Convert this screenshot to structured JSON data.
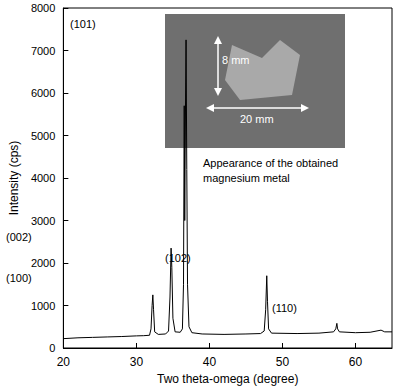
{
  "chart_data": {
    "type": "line",
    "x_label": "Two theta-omega (degree)",
    "y_label": "Intensity (cps)",
    "x": [
      20,
      22,
      24,
      26,
      28,
      30,
      31,
      31.8,
      32.0,
      32.15,
      32.25,
      32.35,
      32.5,
      33,
      34,
      34.4,
      34.6,
      34.75,
      34.85,
      35.0,
      35.3,
      36,
      36.3,
      36.45,
      36.55,
      36.62,
      36.7,
      36.8,
      36.9,
      37.0,
      37.2,
      37.6,
      39,
      42,
      45,
      47,
      47.5,
      47.7,
      47.85,
      47.95,
      48.1,
      48.5,
      52,
      55,
      57,
      57.3,
      57.45,
      57.55,
      57.8,
      60,
      62,
      63.5,
      64,
      65
    ],
    "values": [
      220,
      240,
      250,
      260,
      270,
      285,
      290,
      300,
      450,
      1000,
      1250,
      900,
      380,
      320,
      330,
      400,
      1200,
      2350,
      1900,
      700,
      380,
      370,
      450,
      1500,
      5700,
      3000,
      5200,
      7250,
      4200,
      1500,
      500,
      360,
      330,
      320,
      330,
      340,
      400,
      900,
      1700,
      1100,
      450,
      350,
      340,
      350,
      380,
      450,
      580,
      450,
      380,
      360,
      370,
      420,
      380,
      380
    ],
    "color": "#000000",
    "xlim": [
      20,
      65
    ],
    "xticks": [
      20,
      30,
      40,
      50,
      60
    ],
    "ylim": [
      0,
      8000
    ],
    "yticks": [
      0,
      1000,
      2000,
      3000,
      4000,
      5000,
      6000,
      7000,
      8000
    ],
    "grid": false,
    "annotations": [
      "(101)",
      "(002)",
      "(100)",
      "(102)",
      "(110)"
    ],
    "inset": {
      "labels": [
        "8 mm",
        "20 mm"
      ],
      "caption": "Appearance of the obtained magnesium metal"
    }
  }
}
